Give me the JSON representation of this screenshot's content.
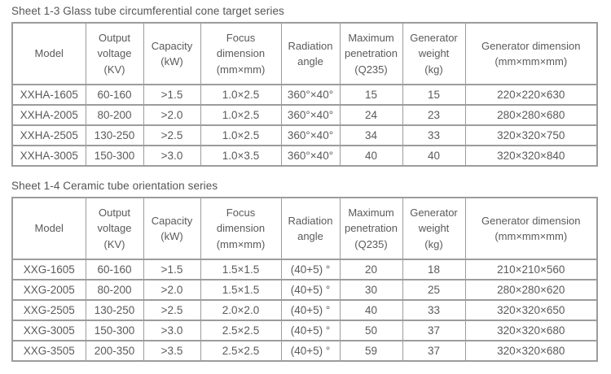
{
  "page": {
    "background_color": "#ffffff",
    "border_color": "#9c9c9c",
    "text_color": "#5a5a5a"
  },
  "tables": [
    {
      "title": "Sheet 1-3 Glass tube circumferential cone target series",
      "headers": [
        "Model",
        "Output\nvoltage\n(KV)",
        "Capacity\n(kW)",
        "Focus\ndimension\n(mm×mm)",
        "Radiation\nangle",
        "Maximum\npenetration\n(Q235)",
        "Generator\nweight\n(kg)",
        "Generator dimension\n(mm×mm×mm)"
      ],
      "rows": [
        [
          "XXHA-1605",
          "60-160",
          ">1.5",
          "1.0×2.5",
          "360°×40°",
          "15",
          "15",
          "220×220×630"
        ],
        [
          "XXHA-2005",
          "80-200",
          ">2.0",
          "1.0×2.5",
          "360°×40°",
          "24",
          "23",
          "280×280×680"
        ],
        [
          "XXHA-2505",
          "130-250",
          ">2.5",
          "1.0×2.5",
          "360°×40°",
          "34",
          "33",
          "320×320×750"
        ],
        [
          "XXHA-3005",
          "150-300",
          ">3.0",
          "1.0×3.5",
          "360°×40°",
          "40",
          "40",
          "320×320×840"
        ]
      ]
    },
    {
      "title": "Sheet 1-4 Ceramic tube orientation series",
      "headers": [
        "Model",
        "Output\nvoltage\n(KV)",
        "Capacity\n(kW)",
        "Focus\ndimension\n(mm×mm)",
        "Radiation\nangle",
        "Maximum\npenetration\n(Q235)",
        "Generator\nweight\n(kg)",
        "Generator dimension\n(mm×mm×mm)"
      ],
      "rows": [
        [
          "XXG-1605",
          "60-160",
          ">1.5",
          "1.5×1.5",
          "(40+5) °",
          "20",
          "18",
          "210×210×560"
        ],
        [
          "XXG-2005",
          "80-200",
          ">2.0",
          "1.5×1.5",
          "(40+5) °",
          "30",
          "25",
          "280×280×620"
        ],
        [
          "XXG-2505",
          "130-250",
          ">2.5",
          "2.0×2.0",
          "(40+5) °",
          "40",
          "33",
          "320×320×650"
        ],
        [
          "XXG-3005",
          "150-300",
          ">3.0",
          "2.5×2.5",
          "(40+5) °",
          "50",
          "37",
          "320×320×680"
        ],
        [
          "XXG-3505",
          "200-350",
          ">3.5",
          "2.5×2.5",
          "(40+5) °",
          "59",
          "37",
          "320×320×680"
        ]
      ]
    }
  ]
}
